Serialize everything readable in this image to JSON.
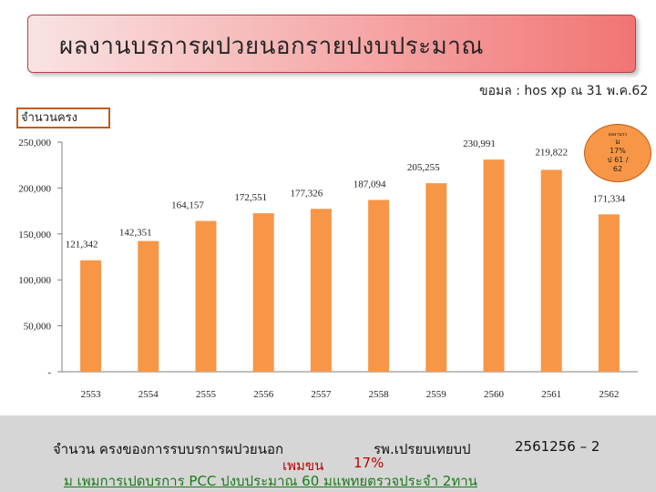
{
  "header": {
    "title": "ผลงานบรการผปวยนอกรายปงบประมาณ",
    "source": "ขอมล    : hos xp ณ 31 พ.ค.62",
    "unit_label": "จำนวนครง"
  },
  "callout": {
    "line1": "ผลงานรว",
    "line2": "ม\n17%\nป 61 /\n62"
  },
  "footer": {
    "line1_a": "จำนวน  ครงของการรบบรการผปวยนอก",
    "line1_b": "รพ.เปรยบเทยบป",
    "line1_c": "2561256 – 2",
    "line2_a": "เพมขน",
    "line2_b": "17%",
    "line3": "ม  เพมการเปดบรการ        PCC ปงบประมาณ  60 มแพทยตรวจประจำ          2ทาน"
  },
  "chart_data": {
    "type": "bar",
    "title": "",
    "xlabel": "",
    "ylabel": "จำนวนครง",
    "categories": [
      "2553",
      "2554",
      "2555",
      "2556",
      "2557",
      "2558",
      "2559",
      "2560",
      "2561",
      "2562"
    ],
    "values": [
      121342,
      142351,
      164157,
      172551,
      177326,
      187094,
      205255,
      230991,
      219822,
      171334
    ],
    "value_labels": [
      "121,342",
      "142,351",
      "164,157",
      "172,551",
      "177,326",
      "187,094",
      "205,255",
      "230,991",
      "219,822",
      "171,334"
    ],
    "y_ticks": [
      0,
      50000,
      100000,
      150000,
      200000,
      250000
    ],
    "y_tick_labels": [
      "-",
      "50,000",
      "100,000",
      "150,000",
      "200,000",
      "250,000"
    ],
    "ylim": [
      0,
      250000
    ],
    "bar_color": "#f79646",
    "grid": false
  }
}
